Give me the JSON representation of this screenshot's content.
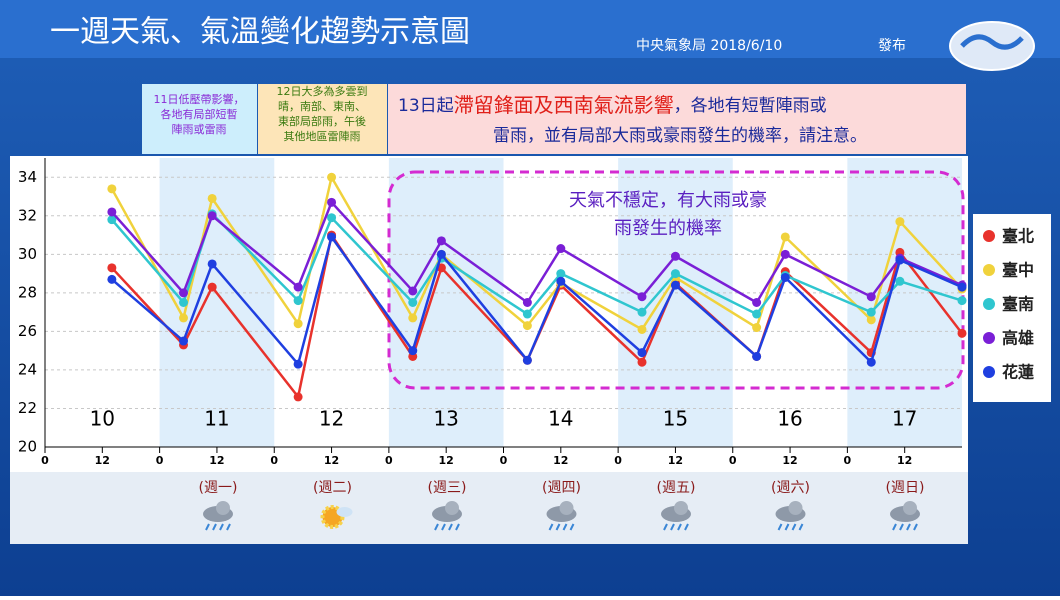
{
  "header": {
    "title": "一週天氣、氣溫變化趨勢示意圖",
    "agency": "中央氣象局  2018/6/10",
    "issued": "發布"
  },
  "notes": {
    "box1": [
      "11日低壓帶影響，",
      "各地有局部短暫",
      "陣雨或雷雨"
    ],
    "box2": [
      "12日大多為多雲到",
      "晴，南部、東南、",
      "東部局部雨，午後",
      "其他地區雷陣雨"
    ],
    "main": {
      "lead": "13日起",
      "highlight": "滯留鋒面及西南氣流影響",
      "rest1": "，各地有短暫陣雨或",
      "rest2": "雷雨，並有局部大雨或豪雨發生的機率，請注意。"
    }
  },
  "chart_data": {
    "type": "line",
    "annotation": [
      "天氣不穩定，有大雨或豪",
      "雨發生的機率"
    ],
    "day_labels": [
      "10",
      "11",
      "12",
      "13",
      "14",
      "15",
      "16",
      "17"
    ],
    "weekdays": [
      "(週一)",
      "(週二)",
      "(週三)",
      "(週四)",
      "(週五)",
      "(週六)",
      "(週日)"
    ],
    "x": [
      14,
      29,
      35,
      53,
      60,
      77,
      83,
      101,
      108,
      125,
      132,
      149,
      155,
      173,
      179,
      192
    ],
    "series": [
      {
        "name": "臺北",
        "color": "#e8322c",
        "values": [
          29.3,
          25.3,
          28.3,
          22.6,
          31.0,
          24.7,
          29.3,
          24.5,
          28.4,
          24.4,
          28.5,
          24.7,
          29.1,
          24.9,
          30.1,
          25.9
        ]
      },
      {
        "name": "臺中",
        "color": "#f0d23c",
        "values": [
          33.4,
          26.7,
          32.9,
          26.4,
          34.0,
          26.7,
          30.0,
          26.3,
          28.5,
          26.1,
          28.8,
          26.2,
          30.9,
          26.6,
          31.7,
          28.2
        ]
      },
      {
        "name": "臺南",
        "color": "#2fc6cf",
        "values": [
          31.8,
          27.5,
          32.1,
          27.6,
          31.9,
          27.5,
          29.8,
          26.9,
          29.0,
          27.0,
          29.0,
          26.9,
          28.9,
          27.0,
          28.6,
          27.6
        ]
      },
      {
        "name": "高雄",
        "color": "#7a1fd6",
        "values": [
          32.2,
          28.0,
          32.0,
          28.3,
          32.7,
          28.1,
          30.7,
          27.5,
          30.3,
          27.8,
          29.9,
          27.5,
          30.0,
          27.8,
          29.8,
          28.4
        ]
      },
      {
        "name": "花蓮",
        "color": "#1f3fe0",
        "values": [
          28.7,
          25.5,
          29.5,
          24.3,
          30.9,
          25.0,
          30.0,
          24.5,
          28.6,
          24.9,
          28.4,
          24.7,
          28.8,
          24.4,
          29.7,
          28.3
        ]
      }
    ],
    "xlim": [
      0,
      192
    ],
    "ylim": [
      20,
      35
    ],
    "yticks": [
      20,
      22,
      24,
      26,
      28,
      30,
      32,
      34
    ],
    "xticks": [
      0,
      12,
      {
        "value": 24,
        "label": "0"
      },
      {
        "value": 36,
        "label": "12"
      },
      {
        "value": 48,
        "label": "0"
      },
      {
        "value": 60,
        "label": "12"
      },
      {
        "value": 72,
        "label": "0"
      },
      {
        "value": 84,
        "label": "12"
      },
      {
        "value": 96,
        "label": "0"
      },
      {
        "value": 108,
        "label": "12"
      },
      {
        "value": 120,
        "label": "0"
      },
      {
        "value": 132,
        "label": "12"
      },
      {
        "value": 144,
        "label": "0"
      },
      {
        "value": 156,
        "label": "12"
      },
      {
        "value": 168,
        "label": "0"
      },
      {
        "value": 180,
        "label": "12"
      }
    ],
    "grid": true
  }
}
